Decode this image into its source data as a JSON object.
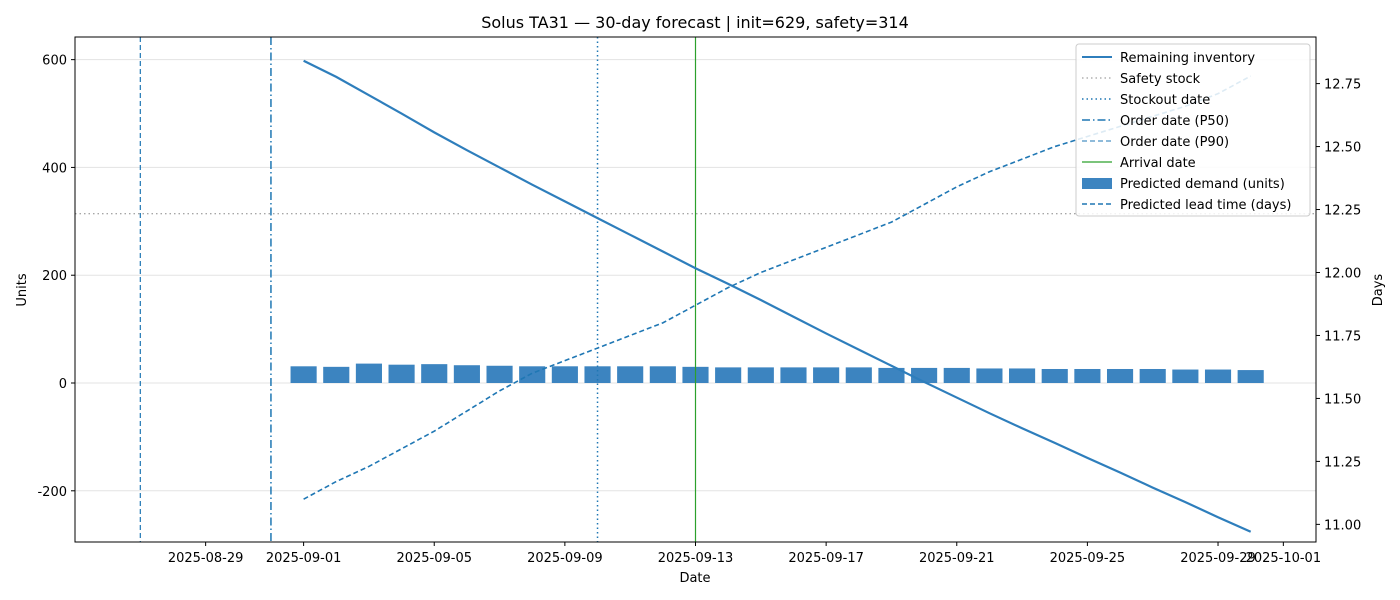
{
  "chart_data": {
    "type": "bar",
    "title": "Solus TA31 — 30-day forecast | init=629, safety=314",
    "xlabel": "Date",
    "ylabel": "Units",
    "y2label": "Days",
    "grid": "horizontal",
    "legend_position": "top-right",
    "ylim": [
      -295,
      642
    ],
    "y2lim": [
      10.93,
      12.935
    ],
    "xlim": [
      "2025-08-25",
      "2025-10-02"
    ],
    "x_ticks": [
      "2025-08-29",
      "2025-09-01",
      "2025-09-05",
      "2025-09-09",
      "2025-09-13",
      "2025-09-17",
      "2025-09-21",
      "2025-09-25",
      "2025-09-29",
      "2025-10-01"
    ],
    "y_ticks": [
      "-200",
      "0",
      "200",
      "400",
      "600"
    ],
    "y2_ticks": [
      "11.00",
      "11.25",
      "11.50",
      "11.75",
      "12.00",
      "12.25",
      "12.50",
      "12.75"
    ],
    "dates": [
      "2025-09-01",
      "2025-09-02",
      "2025-09-03",
      "2025-09-04",
      "2025-09-05",
      "2025-09-06",
      "2025-09-07",
      "2025-09-08",
      "2025-09-09",
      "2025-09-10",
      "2025-09-11",
      "2025-09-12",
      "2025-09-13",
      "2025-09-14",
      "2025-09-15",
      "2025-09-16",
      "2025-09-17",
      "2025-09-18",
      "2025-09-19",
      "2025-09-20",
      "2025-09-21",
      "2025-09-22",
      "2025-09-23",
      "2025-09-24",
      "2025-09-25",
      "2025-09-26",
      "2025-09-27",
      "2025-09-28",
      "2025-09-29",
      "2025-09-30"
    ],
    "safety_stock": 314,
    "markers": {
      "order_date_p90": "2025-08-27",
      "order_date_p50": "2025-08-31",
      "stockout_date": "2025-09-10",
      "arrival_date": "2025-09-13"
    },
    "series": [
      {
        "name": "Remaining inventory",
        "kind": "line",
        "axis": "left",
        "color": "#2e7ebc",
        "dash": "solid",
        "values": [
          598,
          568,
          534,
          500,
          465,
          432,
          400,
          368,
          337,
          306,
          275,
          244,
          213,
          184,
          154,
          123,
          92,
          62,
          32,
          2,
          -27,
          -56,
          -84,
          -111,
          -139,
          -166,
          -194,
          -221,
          -249,
          -276
        ]
      },
      {
        "name": "Predicted demand (units)",
        "kind": "bar",
        "axis": "left",
        "color": "#3c84c0",
        "values": [
          31,
          30,
          36,
          34,
          35,
          33,
          32,
          31,
          31,
          31,
          31,
          31,
          30,
          29,
          29,
          29,
          29,
          29,
          28,
          28,
          28,
          27,
          27,
          26,
          26,
          26,
          26,
          25,
          25,
          24
        ]
      },
      {
        "name": "Predicted lead time (days)",
        "kind": "line",
        "axis": "right",
        "color": "#1f77b4",
        "dash": "dashed",
        "values": [
          11.1,
          11.17,
          11.23,
          11.3,
          11.37,
          11.45,
          11.53,
          11.6,
          11.65,
          11.7,
          11.75,
          11.8,
          11.87,
          11.94,
          12.0,
          12.05,
          12.1,
          12.15,
          12.2,
          12.27,
          12.34,
          12.4,
          12.45,
          12.5,
          12.54,
          12.58,
          12.62,
          12.66,
          12.71,
          12.78
        ]
      }
    ],
    "legend": [
      {
        "label": "Remaining inventory",
        "style": "line",
        "color": "#2e7ebc",
        "dash": "solid",
        "width": 2
      },
      {
        "label": "Safety stock",
        "style": "line",
        "color": "#888888",
        "dash": "dotted",
        "width": 1
      },
      {
        "label": "Stockout date",
        "style": "line",
        "color": "#1f77b4",
        "dash": "dotted",
        "width": 1.5
      },
      {
        "label": "Order date (P50)",
        "style": "line",
        "color": "#1f77b4",
        "dash": "dashdot",
        "width": 1.5
      },
      {
        "label": "Order date (P90)",
        "style": "line",
        "color": "#1f77b4",
        "dash": "dashed",
        "width": 1
      },
      {
        "label": "Arrival date",
        "style": "line",
        "color": "#2ca02c",
        "dash": "solid",
        "width": 1.2
      },
      {
        "label": "Predicted demand (units)",
        "style": "patch",
        "color": "#3c84c0"
      },
      {
        "label": "Predicted lead time (days)",
        "style": "line",
        "color": "#1f77b4",
        "dash": "dashed",
        "width": 1.5
      }
    ]
  }
}
